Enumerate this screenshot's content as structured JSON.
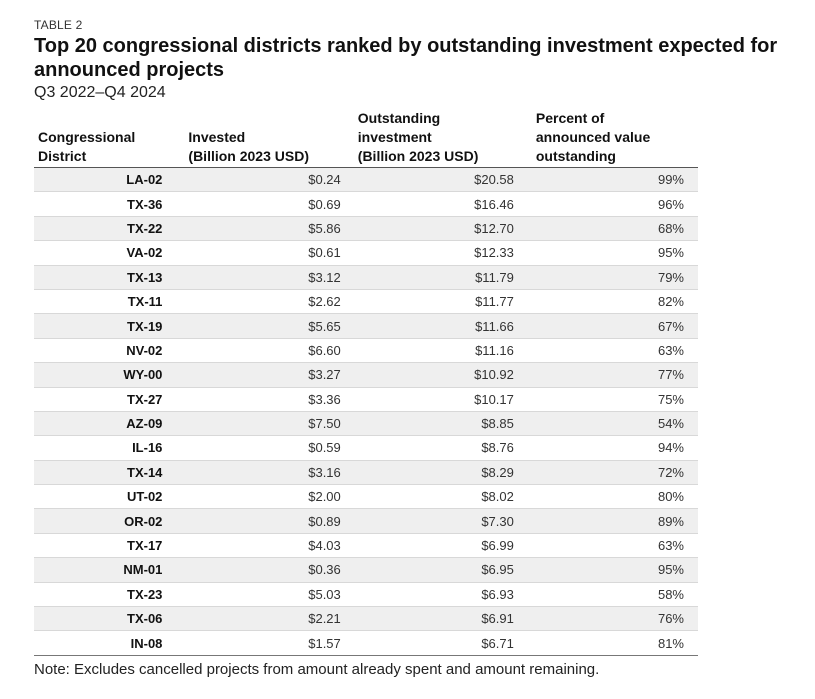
{
  "header": {
    "eyebrow": "TABLE 2",
    "title": "Top 20 congressional districts ranked by outstanding investment expected for announced projects",
    "subtitle": "Q3 2022–Q4 2024"
  },
  "table": {
    "columns": [
      {
        "line1": "Congressional",
        "line2": "District",
        "line3": ""
      },
      {
        "line1": "Invested",
        "line2": "(Billion 2023 USD)",
        "line3": ""
      },
      {
        "line1": "Outstanding",
        "line2": "investment",
        "line3": "(Billion 2023 USD)"
      },
      {
        "line1": "Percent of",
        "line2": "announced value",
        "line3": "outstanding"
      }
    ],
    "rows": [
      {
        "district": "LA-02",
        "invested": "$0.24",
        "outstanding": "$20.58",
        "percent": "99%"
      },
      {
        "district": "TX-36",
        "invested": "$0.69",
        "outstanding": "$16.46",
        "percent": "96%"
      },
      {
        "district": "TX-22",
        "invested": "$5.86",
        "outstanding": "$12.70",
        "percent": "68%"
      },
      {
        "district": "VA-02",
        "invested": "$0.61",
        "outstanding": "$12.33",
        "percent": "95%"
      },
      {
        "district": "TX-13",
        "invested": "$3.12",
        "outstanding": "$11.79",
        "percent": "79%"
      },
      {
        "district": "TX-11",
        "invested": "$2.62",
        "outstanding": "$11.77",
        "percent": "82%"
      },
      {
        "district": "TX-19",
        "invested": "$5.65",
        "outstanding": "$11.66",
        "percent": "67%"
      },
      {
        "district": "NV-02",
        "invested": "$6.60",
        "outstanding": "$11.16",
        "percent": "63%"
      },
      {
        "district": "WY-00",
        "invested": "$3.27",
        "outstanding": "$10.92",
        "percent": "77%"
      },
      {
        "district": "TX-27",
        "invested": "$3.36",
        "outstanding": "$10.17",
        "percent": "75%"
      },
      {
        "district": "AZ-09",
        "invested": "$7.50",
        "outstanding": "$8.85",
        "percent": "54%"
      },
      {
        "district": "IL-16",
        "invested": "$0.59",
        "outstanding": "$8.76",
        "percent": "94%"
      },
      {
        "district": "TX-14",
        "invested": "$3.16",
        "outstanding": "$8.29",
        "percent": "72%"
      },
      {
        "district": "UT-02",
        "invested": "$2.00",
        "outstanding": "$8.02",
        "percent": "80%"
      },
      {
        "district": "OR-02",
        "invested": "$0.89",
        "outstanding": "$7.30",
        "percent": "89%"
      },
      {
        "district": "TX-17",
        "invested": "$4.03",
        "outstanding": "$6.99",
        "percent": "63%"
      },
      {
        "district": "NM-01",
        "invested": "$0.36",
        "outstanding": "$6.95",
        "percent": "95%"
      },
      {
        "district": "TX-23",
        "invested": "$5.03",
        "outstanding": "$6.93",
        "percent": "58%"
      },
      {
        "district": "TX-06",
        "invested": "$2.21",
        "outstanding": "$6.91",
        "percent": "76%"
      },
      {
        "district": "IN-08",
        "invested": "$1.57",
        "outstanding": "$6.71",
        "percent": "81%"
      }
    ]
  },
  "note": "Note: Excludes cancelled projects from amount already spent and amount remaining."
}
